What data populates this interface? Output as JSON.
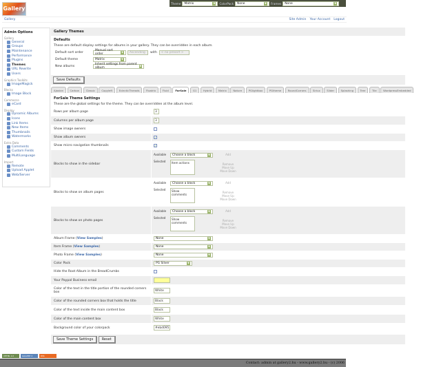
{
  "topbar": {
    "theme_label": "Theme",
    "theme": "Matrix",
    "colorpack_label": "ColorPack",
    "colorpack": "None",
    "frames_label": "Frames",
    "frames": "None"
  },
  "logo": "Gallery",
  "breadcrumb": {
    "home": "Gallery",
    "links": [
      "Site Admin",
      "Your Account",
      "Logout"
    ]
  },
  "sidebar": {
    "title": "Admin Options",
    "groups": [
      {
        "name": "Gallery",
        "items": [
          "General",
          "Groups",
          "Maintenance",
          "Performance",
          "Plugins",
          "Themes",
          "URL Rewrite",
          "Users"
        ]
      },
      {
        "name": "Graphics Toolkits",
        "items": [
          "ImageMagick"
        ]
      },
      {
        "name": "Blocks",
        "items": [
          "Image Block"
        ]
      },
      {
        "name": "Commerce",
        "items": [
          "eCard"
        ]
      },
      {
        "name": "Display",
        "items": [
          "Dynamic Albums",
          "Icons",
          "Link Items",
          "New Items",
          "Thumbnails",
          "Watermarks"
        ]
      },
      {
        "name": "Extra Data",
        "items": [
          "Comments",
          "Custom Fields",
          "MultiLanguage"
        ]
      },
      {
        "name": "Import",
        "items": [
          "Remote",
          "Upload Applet",
          "Web/Server"
        ]
      }
    ],
    "current": "Themes"
  },
  "main": {
    "title": "Gallery Themes",
    "defaults_title": "Defaults",
    "defaults_desc": "These are default display settings for albums in your gallery. They can be overridden in each album.",
    "sort_label": "Default sort order",
    "sort": "Manual sort order",
    "direction": "Ascending",
    "with_label": "with",
    "presort": "< no presort >",
    "theme_label": "Default theme",
    "theme": "Matrix",
    "new_label": "New albums",
    "new": "Inherit settings from parent album",
    "save_defaults": "Save Defaults"
  },
  "tabs": [
    "Ajaxian",
    "Carbon",
    "Classic",
    "Copyleft",
    "EclecticThreads",
    "Floatrix",
    "Fluid",
    "ForSale",
    "G1",
    "Hybrid",
    "Matrix",
    "Nature",
    "PGlightbox",
    "PGtheme",
    "RoundCorners",
    "Siriux",
    "Slider",
    "Splashing",
    "Tree",
    "Tile",
    "WordpressEmbedded"
  ],
  "active_tab": "ForSale",
  "settings": {
    "title": "ForSale Theme Settings",
    "desc": "These are the global settings for the theme. They can be overridden at the album level.",
    "block_labels": {
      "available": "Available",
      "selected": "Selected",
      "choose": "Choose a block",
      "add": "Add",
      "remove": "Remove",
      "up": "Move Up",
      "down": "Move Down"
    },
    "rows": [
      {
        "label": "Rows per album page",
        "type": "text",
        "value": "3"
      },
      {
        "label": "Columns per album page",
        "type": "text",
        "value": "3"
      },
      {
        "label": "Show image owners",
        "type": "check",
        "checked": false
      },
      {
        "label": "Show album owners",
        "type": "check",
        "checked": true
      },
      {
        "label": "Show micro navigation thumbnails",
        "type": "check",
        "checked": true
      },
      {
        "label": "Blocks to show in the sidebar",
        "type": "blocks",
        "selected": "Item actions"
      },
      {
        "label": "Blocks to show on album pages",
        "type": "blocks",
        "selected": "Show comments"
      },
      {
        "label": "Blocks to show on photo pages",
        "type": "blocks",
        "selected": "Show comments"
      },
      {
        "label": "Album Frame",
        "link": "View Samples",
        "type": "select",
        "value": "None"
      },
      {
        "label": "Item Frame",
        "link": "View Samples",
        "type": "select",
        "value": "None"
      },
      {
        "label": "Photo Frame",
        "link": "View Samples",
        "type": "select",
        "value": "None"
      },
      {
        "label": "Color Pack",
        "type": "select",
        "value": "PG Silver",
        "short": true
      },
      {
        "label": "Hide the Root Album in the BreadCrumbs",
        "type": "check",
        "checked": false
      },
      {
        "label": "Your Paypal Business email",
        "type": "text",
        "value": "",
        "yellow": true
      },
      {
        "label": "Color of the text in the title portion of the rounded corners box",
        "type": "text",
        "value": "White"
      },
      {
        "label": "Color of the rounded corners box that holds the title",
        "type": "text",
        "value": "Black"
      },
      {
        "label": "Color of the text inside the main content box",
        "type": "text",
        "value": "Black"
      },
      {
        "label": "Color of the main content box",
        "type": "text",
        "value": "White"
      },
      {
        "label": "Background color of your colorpack",
        "type": "text",
        "value": "#ebd095"
      }
    ],
    "save": "Save Theme Settings",
    "reset": "Reset"
  },
  "badges": [
    "XHTML 1.0",
    "GALLERY 2",
    "RSS"
  ],
  "footer": "Contact: admin at gallery2.hu - www.gallery2.hu - (c) 2006"
}
